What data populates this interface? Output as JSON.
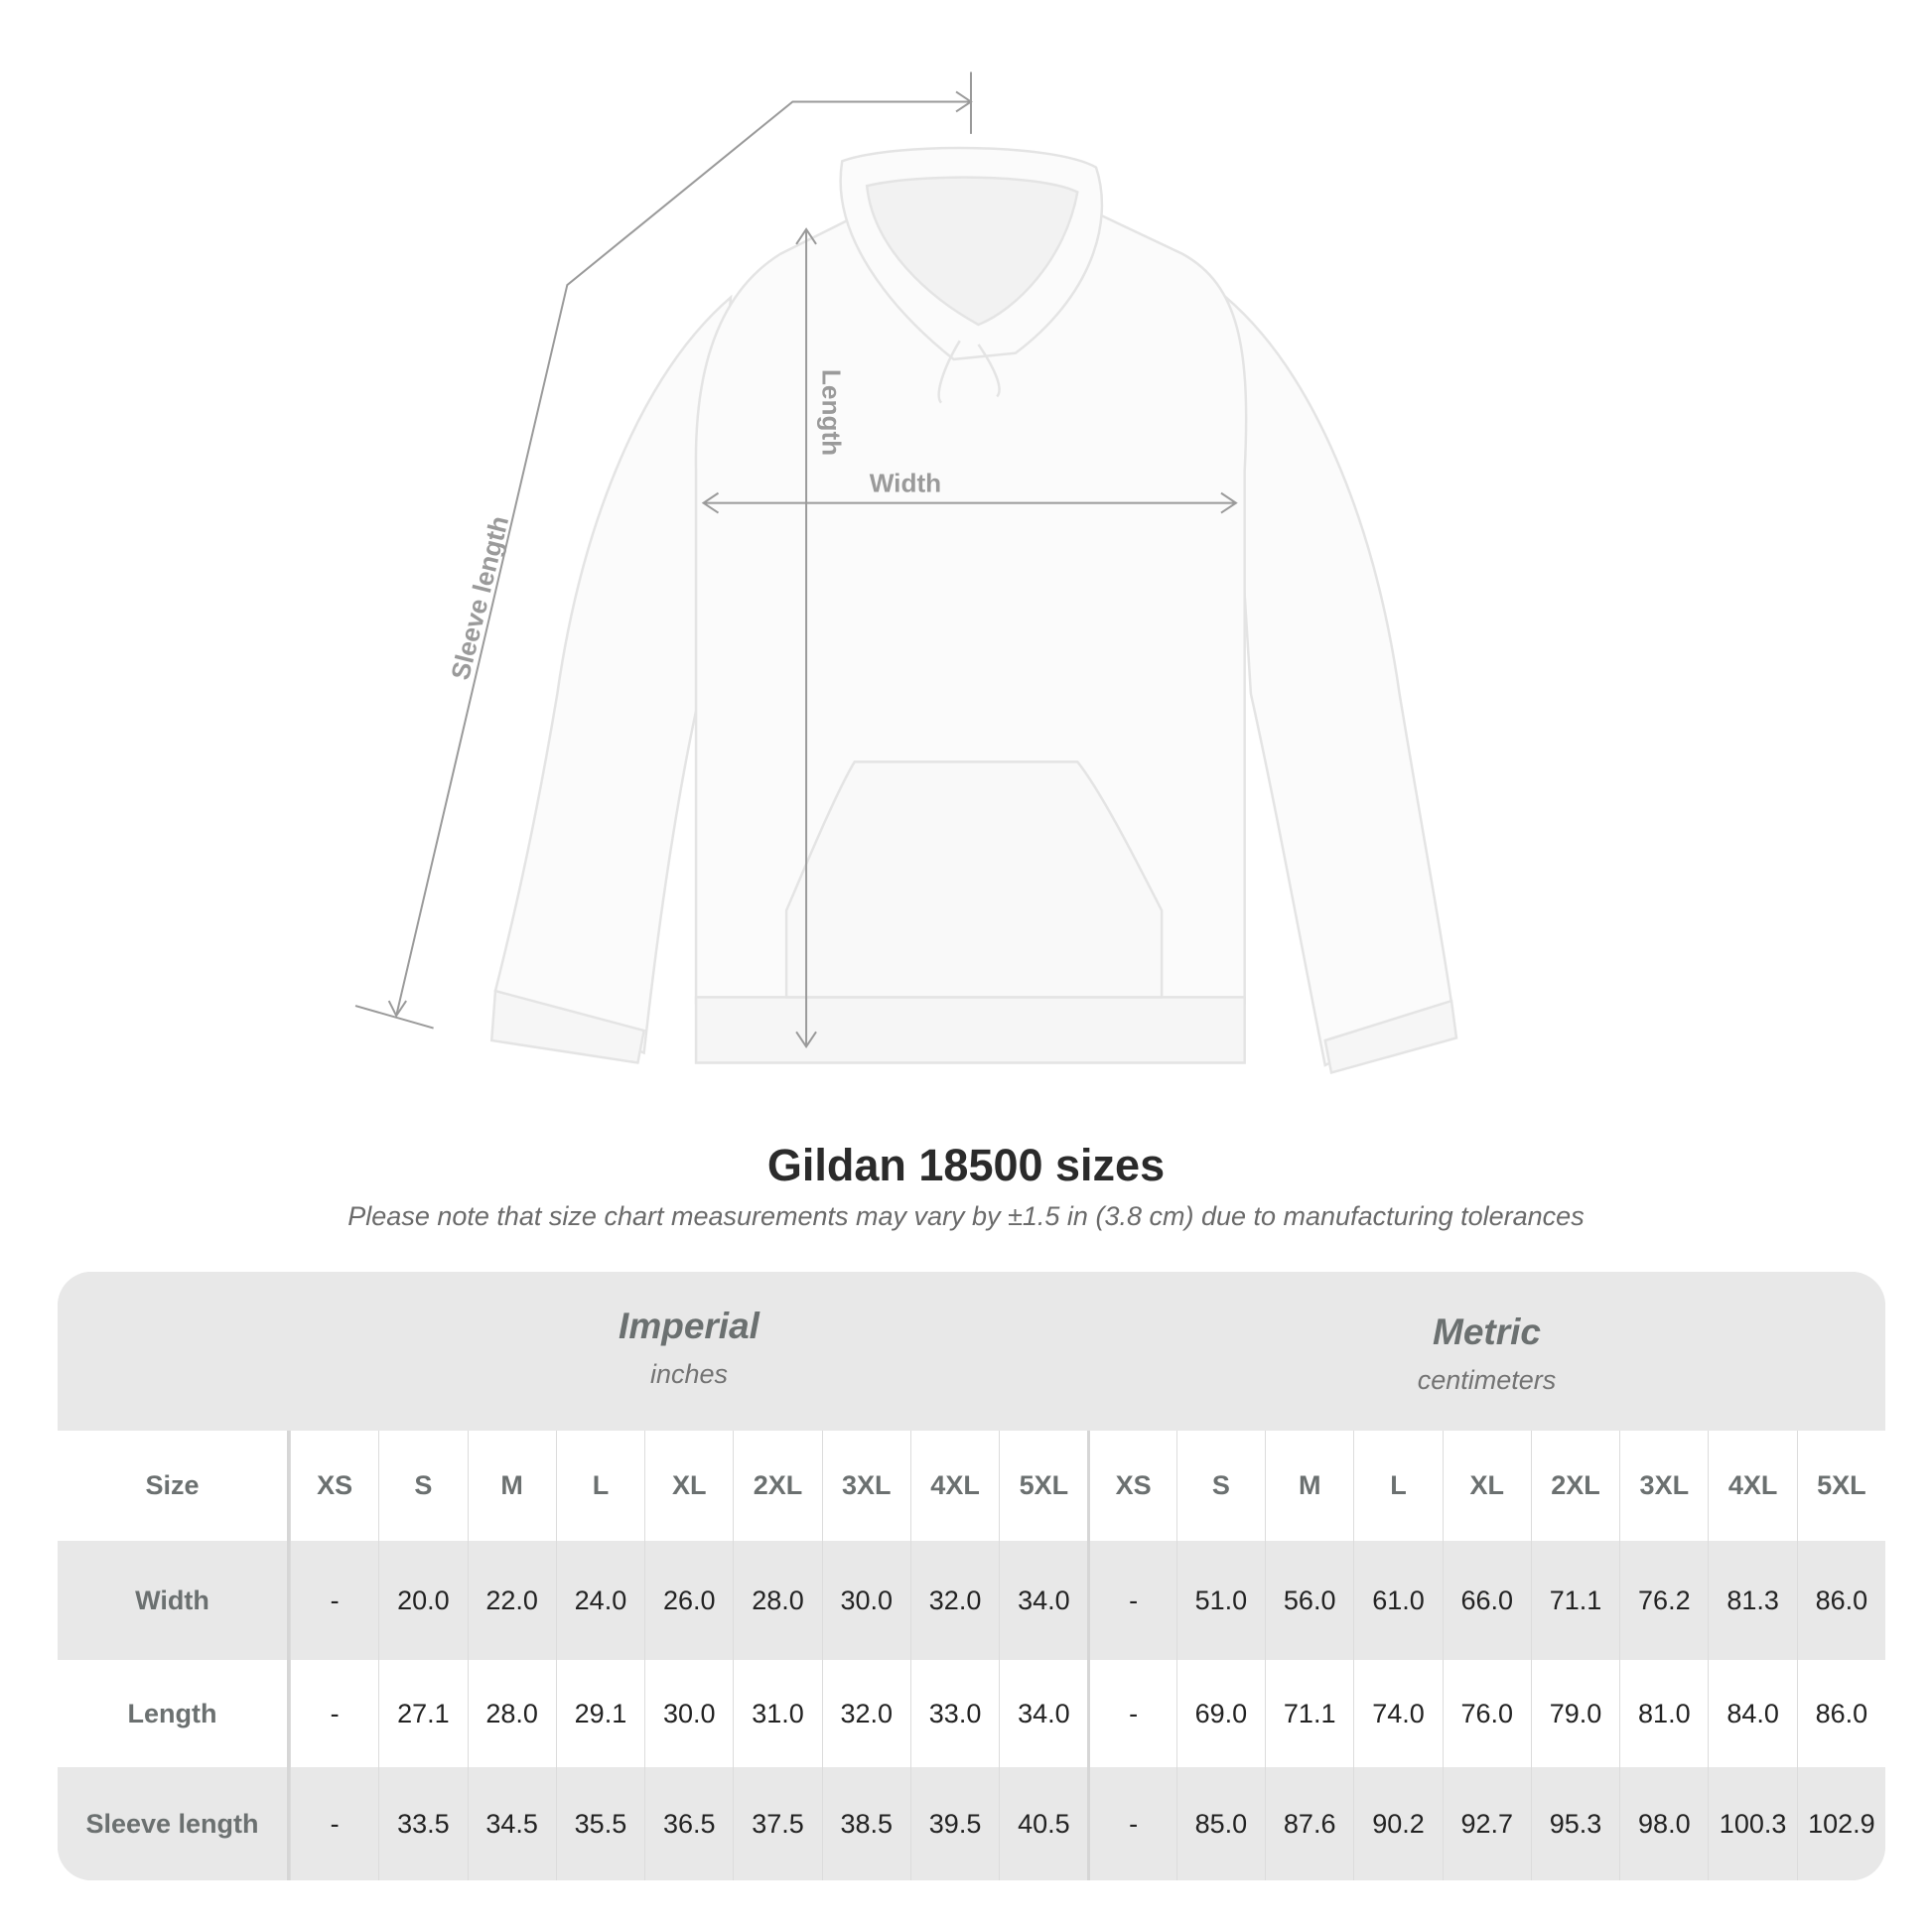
{
  "figure": {
    "labels": {
      "sleeve": "Sleeve length",
      "length": "Length",
      "width": "Width"
    },
    "colors": {
      "measure_line": "#9a9a9a",
      "hoodie": "#fbfbfb"
    }
  },
  "title": "Gildan 18500 sizes",
  "subtitle": "Please note that size chart measurements may vary by ±1.5 in (3.8 cm) due to manufacturing tolerances",
  "table": {
    "imperial": {
      "name": "Imperial",
      "unit": "inches"
    },
    "metric": {
      "name": "Metric",
      "unit": "centimeters"
    },
    "size_label": "Size",
    "sizes": [
      "XS",
      "S",
      "M",
      "L",
      "XL",
      "2XL",
      "3XL",
      "4XL",
      "5XL"
    ],
    "rows": [
      {
        "label": "Width",
        "imperial": [
          "-",
          "20.0",
          "22.0",
          "24.0",
          "26.0",
          "28.0",
          "30.0",
          "32.0",
          "34.0"
        ],
        "metric": [
          "-",
          "51.0",
          "56.0",
          "61.0",
          "66.0",
          "71.1",
          "76.2",
          "81.3",
          "86.0"
        ]
      },
      {
        "label": "Length",
        "imperial": [
          "-",
          "27.1",
          "28.0",
          "29.1",
          "30.0",
          "31.0",
          "32.0",
          "33.0",
          "34.0"
        ],
        "metric": [
          "-",
          "69.0",
          "71.1",
          "74.0",
          "76.0",
          "79.0",
          "81.0",
          "84.0",
          "86.0"
        ]
      },
      {
        "label": "Sleeve length",
        "imperial": [
          "-",
          "33.5",
          "34.5",
          "35.5",
          "36.5",
          "37.5",
          "38.5",
          "39.5",
          "40.5"
        ],
        "metric": [
          "-",
          "85.0",
          "87.6",
          "90.2",
          "92.7",
          "95.3",
          "98.0",
          "100.3",
          "102.9"
        ]
      }
    ]
  }
}
